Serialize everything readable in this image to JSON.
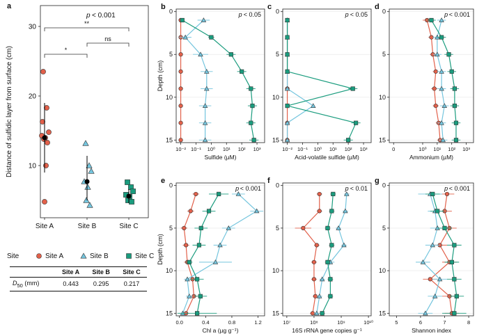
{
  "colors": {
    "site_a": "#e2604a",
    "site_b": "#74c5de",
    "site_c": "#1a9c7e",
    "mean": "#000000",
    "axis": "#222222",
    "grid": "#e6e6e6"
  },
  "legend": {
    "title": "Site",
    "items": [
      "Site A",
      "Site B",
      "Site C"
    ],
    "markers": [
      "circle",
      "triangle",
      "square"
    ]
  },
  "table": {
    "columns": [
      "",
      "Site A",
      "Site B",
      "Site C"
    ],
    "row_label_main": "D",
    "row_label_sub": "50",
    "row_label_unit": " (mm)",
    "values": [
      "0.443",
      "0.295",
      "0.217"
    ]
  },
  "chart_data": [
    {
      "panel": "a",
      "type": "scatter",
      "title": "p < 0.001",
      "ylabel": "Distance of sulfidic layer from surface (cm)",
      "categories": [
        "Site A",
        "Site B",
        "Site C"
      ],
      "ylim": [
        2.5,
        33
      ],
      "yticks": [
        10,
        20,
        30
      ],
      "points": [
        [
          23.5,
          18.3,
          14.8,
          14.3,
          14.0,
          13.8,
          13.3,
          10.0,
          16.3,
          4.8
        ],
        [
          13.2,
          10.0,
          9.2,
          7.7,
          6.9,
          5.0,
          4.3
        ],
        [
          7.6,
          6.9,
          6.3,
          5.8,
          5.5,
          5.0,
          4.8
        ]
      ],
      "means": [
        14.0,
        7.7,
        5.6
      ],
      "ci_low": [
        9.0,
        5.0,
        4.6
      ],
      "ci_high": [
        19.0,
        11.4,
        6.6
      ],
      "brackets": [
        {
          "from": 0,
          "to": 2,
          "label": "**"
        },
        {
          "from": 1,
          "to": 2,
          "label": "ns"
        },
        {
          "from": 0,
          "to": 1,
          "label": "*"
        }
      ]
    },
    {
      "panel": "b",
      "type": "line",
      "scale": "log",
      "title": "p < 0.05",
      "xlabel": "Sulfide (µM)",
      "ylabel": "Depth (cm)",
      "xlim": [
        -2.3,
        3.5
      ],
      "xticks": [
        {
          "v": -2,
          "l": "10⁻²"
        },
        {
          "v": -1,
          "l": "10⁻¹"
        },
        {
          "v": 0,
          "l": "10⁰"
        },
        {
          "v": 1,
          "l": "10¹"
        },
        {
          "v": 2,
          "l": "10²"
        },
        {
          "v": 3,
          "l": "10³"
        }
      ],
      "depth": [
        1,
        3,
        5,
        7,
        9,
        11,
        13,
        15
      ],
      "series": [
        {
          "site": "Site A",
          "values": [
            -2,
            -2,
            -2,
            -2,
            -2,
            -2,
            -2,
            -2
          ],
          "err": [
            0,
            0,
            0,
            0,
            0,
            0,
            0,
            0
          ]
        },
        {
          "site": "Site B",
          "values": [
            -0.5,
            -1.7,
            -0.7,
            -0.3,
            -0.3,
            -0.4,
            -0.4,
            -0.4
          ],
          "err": [
            0.4,
            0.4,
            0.5,
            0.4,
            0.4,
            0.4,
            0.4,
            0.4
          ]
        },
        {
          "site": "Site C",
          "values": [
            -1.9,
            0,
            1.3,
            2.0,
            2.6,
            2.7,
            2.6,
            2.8
          ],
          "err": [
            0.1,
            0.2,
            0.3,
            0.3,
            0.3,
            0.3,
            0.3,
            0.3
          ]
        }
      ]
    },
    {
      "panel": "c",
      "type": "line",
      "scale": "log",
      "title": "p < 0.05",
      "xlabel": "Acid-volatile sulfide (µM)",
      "xlim": [
        -2.3,
        3.5
      ],
      "xticks": [
        {
          "v": -2,
          "l": "10⁻²"
        },
        {
          "v": -1,
          "l": "10⁻¹"
        },
        {
          "v": 0,
          "l": "10⁰"
        },
        {
          "v": 1,
          "l": "10¹"
        },
        {
          "v": 2,
          "l": "10²"
        },
        {
          "v": 3,
          "l": "10³"
        }
      ],
      "depth": [
        1,
        3,
        5,
        7,
        9,
        11,
        13,
        15
      ],
      "series": [
        {
          "site": "Site A",
          "values": [
            -2,
            -2,
            -2,
            -2,
            -2,
            -2,
            -2,
            -2
          ],
          "err": [
            0,
            0,
            0,
            0,
            0,
            0,
            0,
            0
          ]
        },
        {
          "site": "Site B",
          "values": [
            -2,
            -2,
            -2,
            -2,
            -2,
            -0.3,
            -2,
            -2
          ],
          "err": [
            0,
            0,
            0,
            0,
            0,
            0,
            0,
            0
          ]
        },
        {
          "site": "Site C",
          "values": [
            -2,
            -2,
            -2,
            -2,
            2.3,
            -2,
            2.5,
            2.0
          ],
          "err": [
            0,
            0,
            0,
            0,
            0.3,
            0,
            0.3,
            0.3
          ]
        }
      ]
    },
    {
      "panel": "d",
      "type": "line",
      "scale": "log",
      "title": "p < 0.001",
      "xlabel": "Ammonium (µM)",
      "xlim": [
        -2.3,
        3.5
      ],
      "xticks": [
        {
          "v": -2,
          "l": "0"
        },
        {
          "v": 0,
          "l": "10⁰"
        },
        {
          "v": 1,
          "l": "10¹"
        },
        {
          "v": 2,
          "l": "10²"
        },
        {
          "v": 3,
          "l": "10³"
        }
      ],
      "depth": [
        1,
        3,
        5,
        7,
        9,
        11,
        13,
        15
      ],
      "series": [
        {
          "site": "Site A",
          "values": [
            0.3,
            0.6,
            0.7,
            0.9,
            0.8,
            0.9,
            1.1,
            1.2
          ],
          "err": [
            0.3,
            0.2,
            0.2,
            0.2,
            0.2,
            0.2,
            0.2,
            0.2
          ]
        },
        {
          "site": "Site B",
          "values": [
            1.3,
            1.0,
            1.0,
            1.3,
            1.3,
            1.5,
            1.3,
            1.4
          ],
          "err": [
            0.3,
            0.3,
            0.3,
            0.3,
            0.3,
            0.3,
            0.3,
            0.3
          ]
        },
        {
          "site": "Site C",
          "values": [
            0.6,
            1.3,
            1.8,
            2.0,
            2.2,
            2.2,
            2.3,
            2.3
          ],
          "err": [
            0.3,
            0.3,
            0.3,
            0.3,
            0.3,
            0.3,
            0.3,
            0.3
          ]
        }
      ]
    },
    {
      "panel": "e",
      "type": "line",
      "title": "p < 0.001",
      "xlabel": "Chl a (µg g⁻¹)",
      "ylabel": "Depth (cm)",
      "xlim": [
        -0.05,
        1.3
      ],
      "xticks": [
        {
          "v": 0,
          "l": "0.0"
        },
        {
          "v": 0.4,
          "l": "0.4"
        },
        {
          "v": 0.8,
          "l": "0.8"
        },
        {
          "v": 1.2,
          "l": "1.2"
        }
      ],
      "depth": [
        1,
        3,
        5,
        7,
        9,
        11,
        13,
        15
      ],
      "series": [
        {
          "site": "Site A",
          "values": [
            0.25,
            0.17,
            0.07,
            0.1,
            0.12,
            0.2,
            0.22,
            0.1
          ],
          "err": [
            0.05,
            0.05,
            0.05,
            0.05,
            0.05,
            0.05,
            0.05,
            0.05
          ]
        },
        {
          "site": "Site B",
          "values": [
            0.9,
            1.18,
            0.75,
            0.62,
            0.55,
            0.12,
            0.15,
            0.05
          ],
          "err": [
            0.1,
            0.1,
            0.1,
            0.1,
            0.25,
            0.05,
            0.05,
            0.05
          ]
        },
        {
          "site": "Site C",
          "values": [
            0.6,
            0.45,
            0.33,
            0.3,
            0.15,
            0.27,
            0.32,
            0.27
          ],
          "err": [
            0.15,
            0.1,
            0.1,
            0.1,
            0.05,
            0.1,
            0.1,
            0.3
          ]
        }
      ]
    },
    {
      "panel": "f",
      "type": "line",
      "scale": "log",
      "title": "p < 0.01",
      "xlabel": "16S rRNA gene copies g⁻¹",
      "xlim": [
        6.85,
        10.1
      ],
      "xticks": [
        {
          "v": 7,
          "l": "10⁷"
        },
        {
          "v": 8,
          "l": "10⁸"
        },
        {
          "v": 9,
          "l": "10⁹"
        },
        {
          "v": 10,
          "l": "10¹⁰"
        }
      ],
      "depth": [
        1,
        3,
        5,
        7,
        9,
        11,
        13,
        15
      ],
      "series": [
        {
          "site": "Site A",
          "values": [
            8.2,
            8.2,
            7.6,
            8.1,
            8.0,
            8.0,
            8.05,
            7.95
          ],
          "err": [
            0.1,
            0.1,
            0.3,
            0.1,
            0.1,
            0.1,
            0.1,
            0.1
          ]
        },
        {
          "site": "Site B",
          "values": [
            9.2,
            9.15,
            8.9,
            9.1,
            8.6,
            8.3,
            8.2,
            8.1
          ],
          "err": [
            0.1,
            0.1,
            0.1,
            0.1,
            0.15,
            0.1,
            0.1,
            0.1
          ]
        },
        {
          "site": "Site C",
          "values": [
            8.7,
            8.65,
            8.5,
            8.65,
            8.5,
            8.6,
            8.6,
            8.3
          ],
          "err": [
            0.1,
            0.1,
            0.1,
            0.1,
            0.1,
            0.1,
            0.1,
            0.1
          ]
        }
      ]
    },
    {
      "panel": "g",
      "type": "line",
      "title": "p < 0.001",
      "xlabel": "Shannon index",
      "xlim": [
        4.7,
        8.2
      ],
      "xticks": [
        {
          "v": 5,
          "l": "5"
        },
        {
          "v": 6,
          "l": "6"
        },
        {
          "v": 7,
          "l": "7"
        },
        {
          "v": 8,
          "l": "8"
        }
      ],
      "depth": [
        1,
        3,
        5,
        7,
        9,
        11,
        13,
        15
      ],
      "series": [
        {
          "site": "Site A",
          "values": [
            7.1,
            7.0,
            7.2,
            6.8,
            7.2,
            6.4,
            7.2,
            7.3
          ],
          "err": [
            0.3,
            0.3,
            0.3,
            0.3,
            0.3,
            0.3,
            0.3,
            0.3
          ]
        },
        {
          "site": "Site B",
          "values": [
            6.4,
            6.6,
            6.7,
            6.5,
            6.1,
            6.8,
            6.6,
            6.2
          ],
          "err": [
            0.5,
            0.3,
            0.3,
            0.3,
            0.3,
            0.3,
            0.3,
            0.3
          ]
        },
        {
          "site": "Site C",
          "values": [
            6.5,
            6.7,
            7.0,
            7.4,
            7.3,
            7.4,
            7.5,
            7.4
          ],
          "err": [
            0.3,
            0.3,
            0.3,
            0.3,
            0.3,
            0.3,
            0.3,
            0.5
          ]
        }
      ]
    }
  ]
}
